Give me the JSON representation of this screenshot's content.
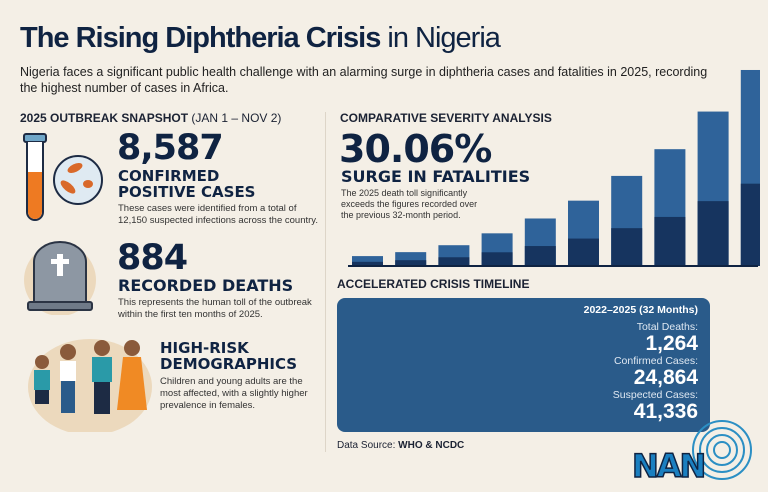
{
  "header": {
    "title_bold": "The Rising Diphtheria Crisis",
    "title_light": "in Nigeria",
    "subtitle": "Nigeria faces a significant public health challenge with an alarming surge in diphtheria cases and fatalities in 2025, recording the highest number of cases in Africa."
  },
  "snapshot": {
    "heading": "2025 OUTBREAK SNAPSHOT",
    "heading_range": "(JAN 1 – NOV 2)",
    "confirmed": {
      "value": "8,587",
      "label1": "CONFIRMED",
      "label2": "POSITIVE CASES",
      "desc": "These cases were identified from a total of 12,150 suspected infections across the country."
    },
    "deaths": {
      "value": "884",
      "label": "RECORDED DEATHS",
      "desc": "This represents the human toll of the outbreak within the first ten months of 2025."
    },
    "demographics": {
      "label1": "HIGH-RISK",
      "label2": "DEMOGRAPHICS",
      "desc": "Children and young adults are the most affected, with a slightly higher prevalence in females."
    }
  },
  "severity": {
    "heading": "COMPARATIVE SEVERITY ANALYSIS",
    "value": "30.06%",
    "label": "SURGE IN FATALITIES",
    "desc": "The 2025 death toll significantly exceeds the figures recorded over the previous 32-month period."
  },
  "chart_data": {
    "type": "bar",
    "title": "",
    "xlabel": "",
    "ylabel": "",
    "categories": [
      "1",
      "2",
      "3",
      "4",
      "5",
      "6",
      "7",
      "8",
      "9",
      "10"
    ],
    "values": [
      10,
      14,
      21,
      33,
      48,
      66,
      91,
      118,
      156,
      198
    ],
    "ylim": [
      0,
      200
    ],
    "grid": false,
    "colors": {
      "bar": "#2f639a",
      "shade": "#16345f"
    }
  },
  "timeline": {
    "heading": "ACCELERATED CRISIS TIMELINE",
    "period": "2022–2025 (32 Months)",
    "items": [
      {
        "label": "Total Deaths:",
        "value": "1,264"
      },
      {
        "label": "Confirmed Cases:",
        "value": "24,864"
      },
      {
        "label": "Suspected Cases:",
        "value": "41,336"
      }
    ]
  },
  "source": {
    "label": "Data Source:",
    "value": "WHO & NCDC"
  },
  "logo": {
    "text": "NAN"
  }
}
